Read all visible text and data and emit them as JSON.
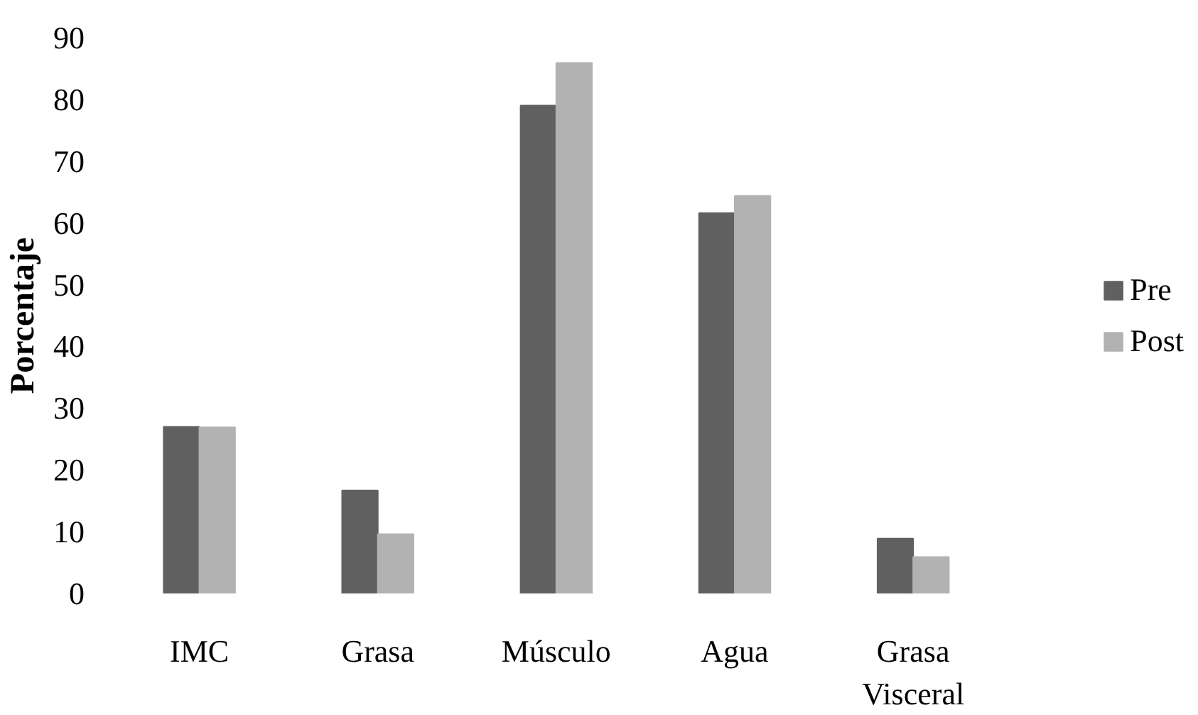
{
  "chart_data": {
    "type": "bar",
    "ylabel": "Porcentaje",
    "categories": [
      "IMC",
      "Grasa",
      "Músculo",
      "Agua",
      "Grasa Visceral"
    ],
    "series": [
      {
        "name": "Pre",
        "color": "#606060",
        "values": [
          27.0,
          16.7,
          79.0,
          61.6,
          8.9
        ]
      },
      {
        "name": "Post",
        "color": "#b2b2b2",
        "values": [
          26.9,
          9.6,
          85.9,
          64.4,
          5.9
        ]
      }
    ],
    "ylim": [
      0,
      90
    ],
    "yticks": [
      0,
      10,
      20,
      30,
      40,
      50,
      60,
      70,
      80,
      90
    ],
    "grid": false,
    "legend": "right"
  }
}
